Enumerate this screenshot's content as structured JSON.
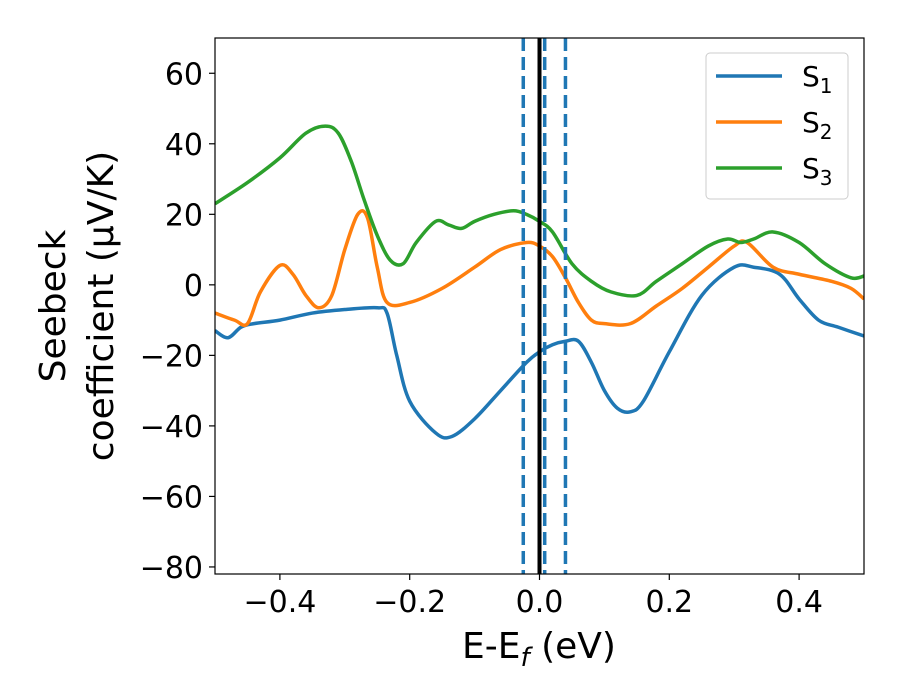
{
  "chart_data": {
    "type": "line",
    "title": "",
    "xlabel": {
      "base": "E-E",
      "sub": "f",
      "suffix": " (eV)"
    },
    "ylabel": {
      "line1": "Seebeck",
      "line2": "coefficient  (μV/K)"
    },
    "xlim": [
      -0.5,
      0.5
    ],
    "ylim": [
      -82,
      70
    ],
    "xticks": [
      -0.4,
      -0.2,
      0.0,
      0.2,
      0.4
    ],
    "xtick_labels": [
      "−0.4",
      "−0.2",
      "0.0",
      "0.2",
      "0.4"
    ],
    "yticks": [
      -80,
      -60,
      -40,
      -20,
      0,
      20,
      40,
      60
    ],
    "ytick_labels": [
      "−80",
      "−60",
      "−40",
      "−20",
      "0",
      "20",
      "40",
      "60"
    ],
    "grid": false,
    "legend_position": "top-right",
    "series": [
      {
        "name": "S",
        "sub": "1",
        "color": "#1f77b4",
        "x": [
          -0.5,
          -0.48,
          -0.46,
          -0.44,
          -0.4,
          -0.35,
          -0.3,
          -0.25,
          -0.235,
          -0.22,
          -0.2,
          -0.16,
          -0.135,
          -0.1,
          -0.06,
          -0.02,
          0.0,
          0.02,
          0.04,
          0.06,
          0.08,
          0.1,
          0.12,
          0.14,
          0.16,
          0.2,
          0.25,
          0.3,
          0.33,
          0.37,
          0.4,
          0.43,
          0.46,
          0.5
        ],
        "y": [
          -13,
          -15,
          -12,
          -11,
          -10,
          -8,
          -7,
          -6.5,
          -8,
          -20,
          -33,
          -42,
          -43,
          -38,
          -30,
          -22,
          -19,
          -17,
          -16,
          -16,
          -22,
          -30,
          -35,
          -36,
          -33,
          -19,
          -3,
          5,
          5,
          3,
          -4,
          -10,
          -12,
          -14.5
        ]
      },
      {
        "name": "S",
        "sub": "2",
        "color": "#ff7f0e",
        "x": [
          -0.5,
          -0.47,
          -0.45,
          -0.43,
          -0.4,
          -0.38,
          -0.36,
          -0.34,
          -0.32,
          -0.3,
          -0.28,
          -0.265,
          -0.25,
          -0.235,
          -0.2,
          -0.15,
          -0.1,
          -0.06,
          -0.02,
          0.0,
          0.02,
          0.04,
          0.06,
          0.08,
          0.1,
          0.14,
          0.18,
          0.22,
          0.26,
          0.3,
          0.32,
          0.36,
          0.4,
          0.45,
          0.48,
          0.5
        ],
        "y": [
          -8,
          -10,
          -11,
          -2,
          5.5,
          3,
          -3,
          -6.5,
          -3,
          10,
          20,
          19,
          5,
          -5,
          -5,
          -1,
          5,
          10,
          12,
          11,
          8,
          2,
          -5,
          -10,
          -11,
          -11,
          -6,
          -1,
          5,
          11,
          12,
          5,
          3,
          1,
          -1,
          -4
        ]
      },
      {
        "name": "S",
        "sub": "3",
        "color": "#2ca02c",
        "x": [
          -0.5,
          -0.45,
          -0.4,
          -0.36,
          -0.33,
          -0.31,
          -0.29,
          -0.27,
          -0.25,
          -0.23,
          -0.21,
          -0.19,
          -0.16,
          -0.14,
          -0.12,
          -0.1,
          -0.07,
          -0.04,
          -0.02,
          0.0,
          0.02,
          0.05,
          0.08,
          0.11,
          0.15,
          0.18,
          0.22,
          0.26,
          0.29,
          0.31,
          0.33,
          0.36,
          0.4,
          0.44,
          0.48,
          0.5
        ],
        "y": [
          23,
          29,
          36,
          43,
          45,
          43,
          35,
          24,
          14,
          7,
          6,
          12,
          18,
          17,
          16,
          18,
          20,
          21,
          20,
          18,
          15,
          6,
          1,
          -2,
          -3,
          1,
          6,
          11,
          13,
          12,
          13,
          15,
          12,
          6,
          2,
          2.5
        ]
      }
    ],
    "vlines": [
      {
        "x": -0.025,
        "style": "dashed",
        "color": "#1f77b4"
      },
      {
        "x": 0.008,
        "style": "dashed",
        "color": "#1f77b4"
      },
      {
        "x": 0.04,
        "style": "dashed",
        "color": "#1f77b4"
      },
      {
        "x": 0.0,
        "style": "solid",
        "color": "#000000"
      }
    ]
  }
}
